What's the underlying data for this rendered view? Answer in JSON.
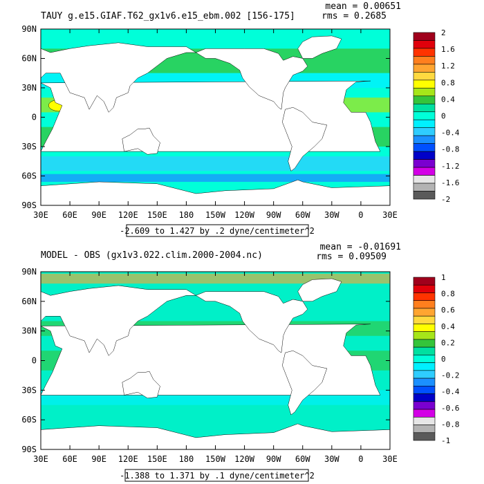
{
  "chart_data": [
    {
      "type": "heatmap",
      "title": "TAUY g.e15.GIAF.T62_gx1v6.e15_ebm.002 [156-175]",
      "stats": {
        "mean": "mean = 0.00651",
        "rms": "rms = 0.2685"
      },
      "range_label": "-2.609 to 1.427 by .2 dyne/centimeter^2",
      "x_ticks": [
        "30E",
        "60E",
        "90E",
        "120E",
        "150E",
        "180",
        "150W",
        "120W",
        "90W",
        "60W",
        "30W",
        "0",
        "30E"
      ],
      "y_ticks": [
        "90N",
        "60N",
        "30N",
        "0",
        "30S",
        "60S",
        "90S"
      ],
      "colorbar": {
        "labels": [
          "2",
          "1.6",
          "1.2",
          "0.8",
          "0.4",
          "0",
          "-0.4",
          "-0.8",
          "-1.2",
          "-1.6",
          "-2"
        ],
        "colors": [
          "#a0001c",
          "#e0000b",
          "#ff3300",
          "#ff7f1e",
          "#ffa531",
          "#ffd940",
          "#ffff00",
          "#a6e619",
          "#35c43a",
          "#00e0a0",
          "#00ffd9",
          "#00f0ff",
          "#2fcdff",
          "#1b90ff",
          "#0050ff",
          "#0000c8",
          "#7a00d0",
          "#d300e6",
          "#e6e6e6",
          "#b3b3b3",
          "#5a5a5a"
        ]
      },
      "mean_value": 0.00651,
      "rms_value": 0.2685
    },
    {
      "type": "heatmap",
      "title": "MODEL - OBS (gx1v3.022.clim.2000-2004.nc)",
      "stats": {
        "mean": "mean = -0.01691",
        "rms": "rms = 0.09509"
      },
      "range_label": "-1.388 to 1.371 by .1 dyne/centimeter^2",
      "x_ticks": [
        "30E",
        "60E",
        "90E",
        "120E",
        "150E",
        "180",
        "150W",
        "120W",
        "90W",
        "60W",
        "30W",
        "0",
        "30E"
      ],
      "y_ticks": [
        "90N",
        "60N",
        "30N",
        "0",
        "30S",
        "60S",
        "90S"
      ],
      "colorbar": {
        "labels": [
          "1",
          "0.8",
          "0.6",
          "0.4",
          "0.2",
          "0",
          "-0.2",
          "-0.4",
          "-0.6",
          "-0.8",
          "-1"
        ],
        "colors": [
          "#a0001c",
          "#e0000b",
          "#ff3300",
          "#ff7f1e",
          "#ffa531",
          "#ffd940",
          "#ffff00",
          "#a6e619",
          "#35c43a",
          "#00e0a0",
          "#00ffd9",
          "#00f0ff",
          "#2fcdff",
          "#1b90ff",
          "#0050ff",
          "#0000c8",
          "#7a00d0",
          "#d300e6",
          "#e6e6e6",
          "#b3b3b3",
          "#5a5a5a"
        ]
      },
      "mean_value": -0.01691,
      "rms_value": 0.09509
    }
  ]
}
